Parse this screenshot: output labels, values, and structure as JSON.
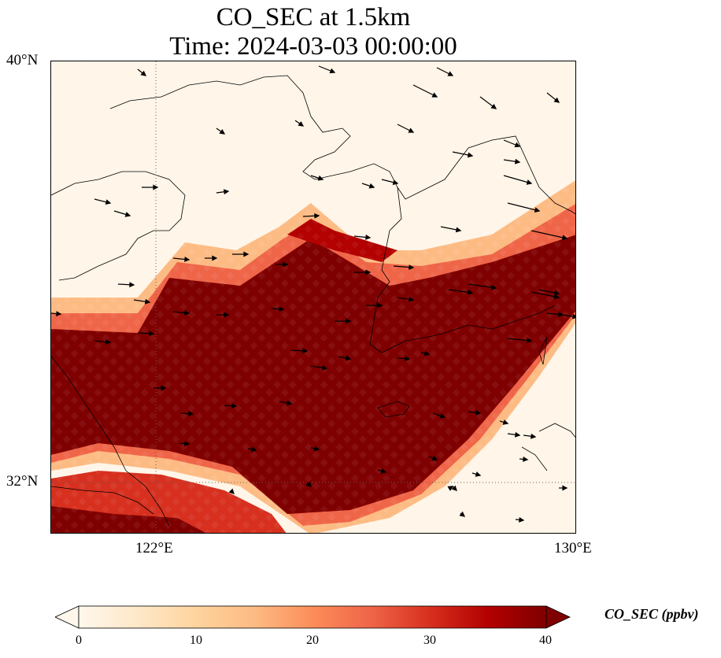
{
  "title": {
    "line1": "CO_SEC at 1.5km",
    "line2": "Time: 2024-03-03 00:00:00"
  },
  "map": {
    "lat_labels": [
      "40°N",
      "32°N"
    ],
    "lon_labels": [
      "122°E",
      "130°E"
    ],
    "extent": {
      "lon": [
        120,
        130
      ],
      "lat": [
        31,
        40
      ]
    },
    "gridlines": {
      "lons": [
        122,
        130
      ],
      "lats": [
        32,
        40
      ],
      "style": "dotted"
    },
    "field_description_colors": {
      "low": "#fff5eb",
      "high": "#7f0000"
    }
  },
  "colorbar": {
    "label": "CO_SEC (ppbv)",
    "ticks": [
      "0",
      "10",
      "20",
      "30",
      "40"
    ],
    "min": 0,
    "max": 40,
    "extend": "both",
    "colormap": "OrRd",
    "colors": [
      "#fff7ec",
      "#fee8c8",
      "#fdd49e",
      "#fdbb84",
      "#fc8d59",
      "#ef6548",
      "#d7301f",
      "#b30000",
      "#7f0000"
    ]
  }
}
